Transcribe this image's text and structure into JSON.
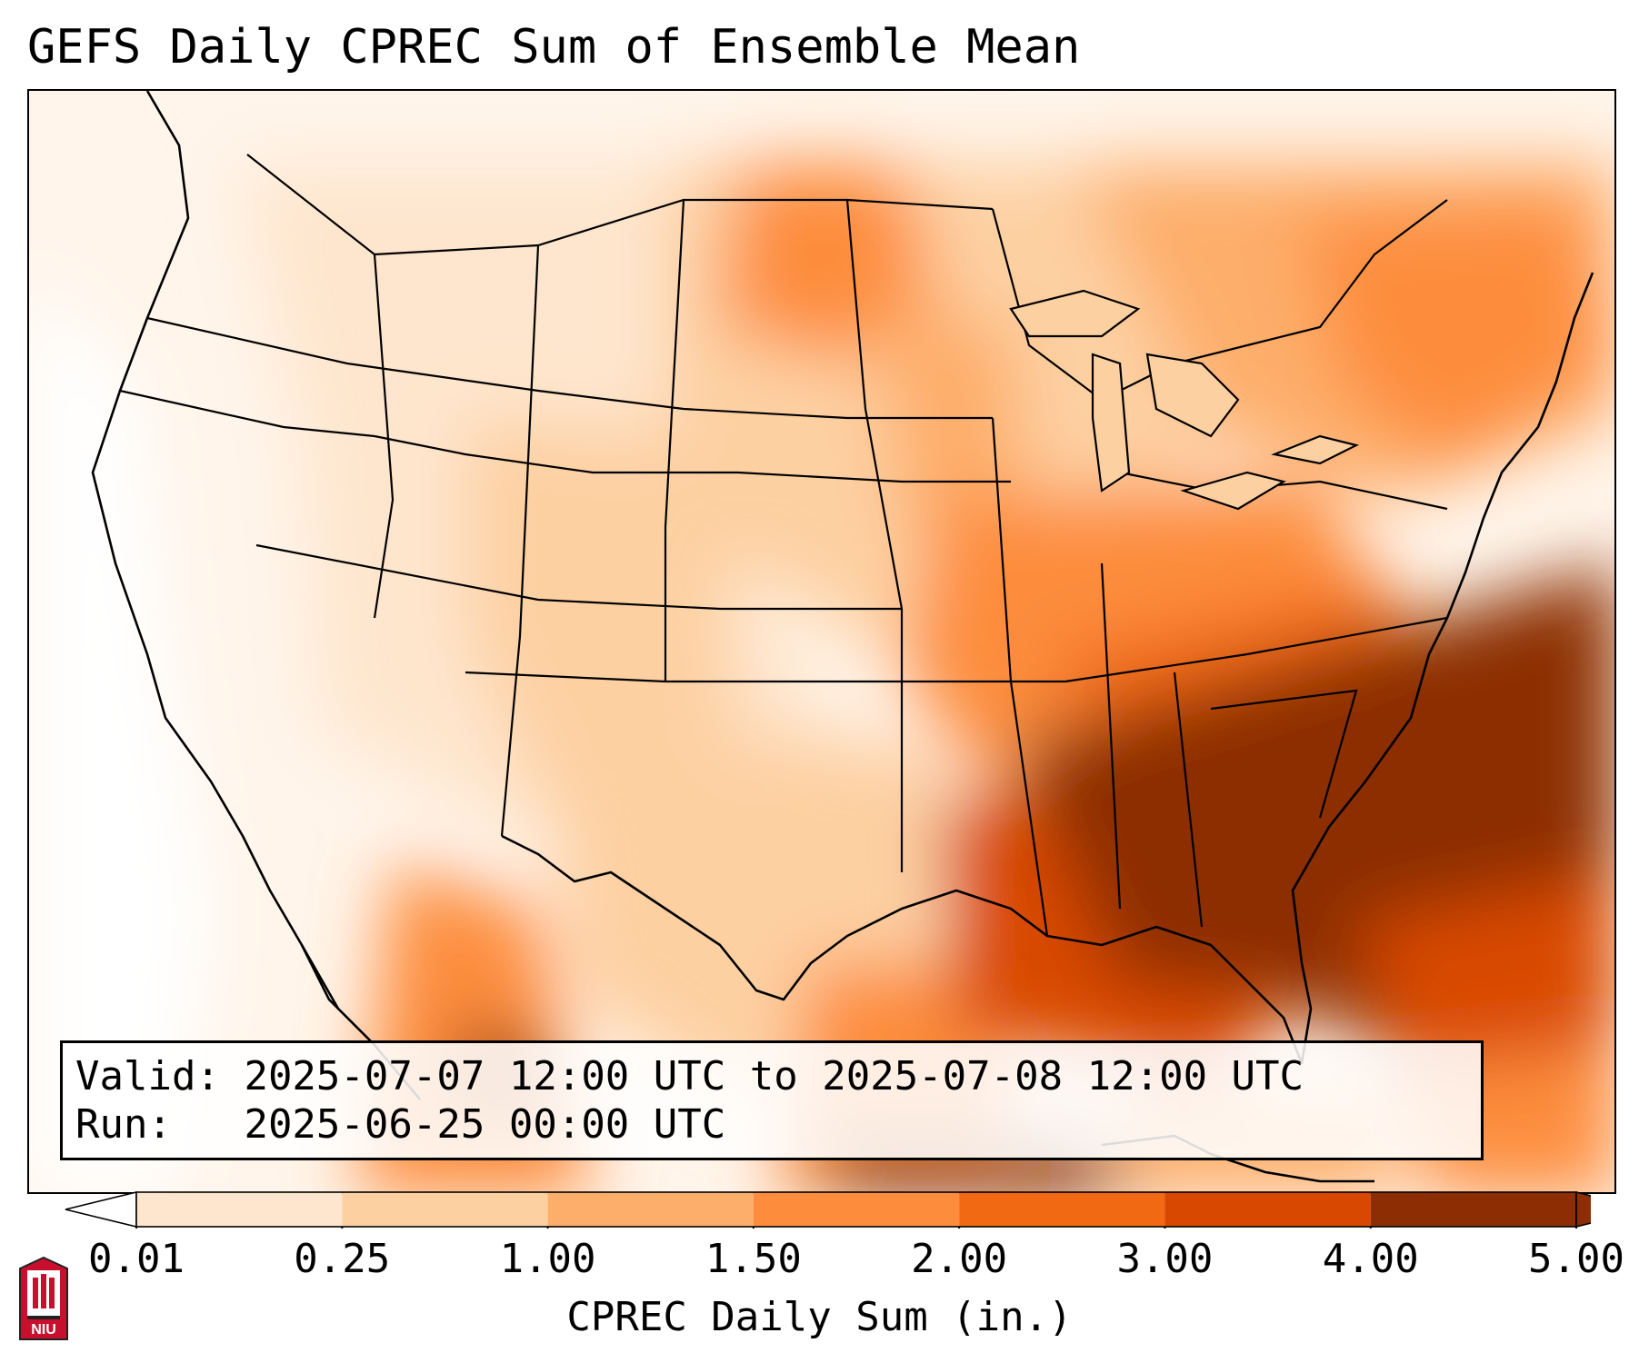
{
  "title": "GEFS Daily CPREC Sum of Ensemble Mean",
  "map": {
    "region": "Contiguous United States",
    "colors": {
      "lightest": "#fff5eb",
      "l2": "#fee6ce",
      "l3": "#fdd0a2",
      "l4": "#fdae6b",
      "l5": "#fd8d3c",
      "l6": "#f16913",
      "l7": "#d94801",
      "darkest": "#8c2d04"
    }
  },
  "info": {
    "valid_label": "Valid:",
    "valid_value": "2025-07-07 12:00 UTC to 2025-07-08 12:00 UTC",
    "run_label": "Run:",
    "run_value": "2025-06-25 00:00 UTC"
  },
  "colorbar": {
    "label": "CPREC Daily Sum (in.)",
    "ticks": [
      "0.01",
      "0.25",
      "1.00",
      "1.50",
      "2.00",
      "3.00",
      "4.00",
      "5.00"
    ],
    "colors": [
      "#fff5eb",
      "#fee6ce",
      "#fdd0a2",
      "#fdae6b",
      "#fd8d3c",
      "#f16913",
      "#d94801",
      "#8c2d04"
    ],
    "under_color": "#ffffff",
    "over_color": "#8c2d04"
  },
  "logo": {
    "text": "NIU",
    "color": "#c8102e"
  }
}
